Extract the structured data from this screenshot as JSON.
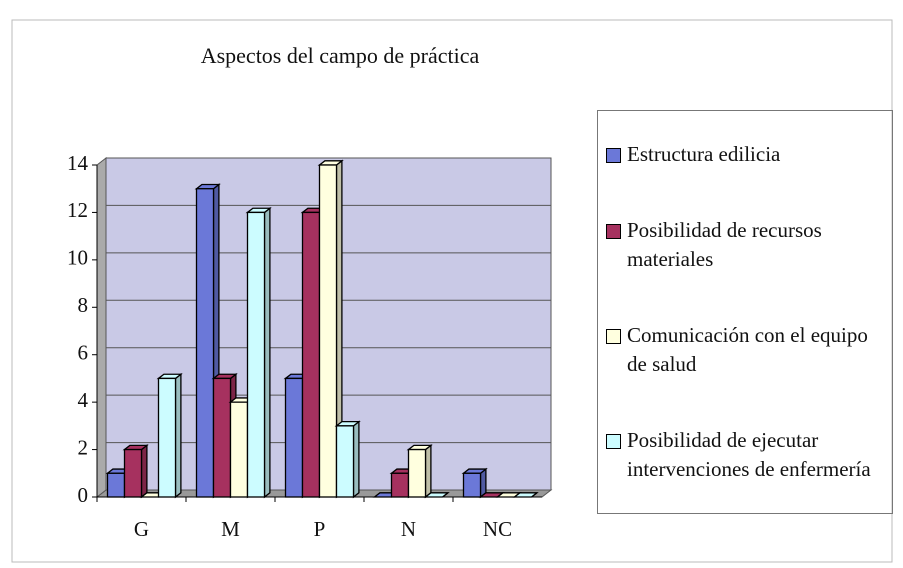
{
  "chart_data": {
    "type": "bar3d",
    "title": "Aspectos del campo de práctica",
    "categories": [
      "G",
      "M",
      "P",
      "N",
      "NC"
    ],
    "series": [
      {
        "name": "Estructura edilicia",
        "color": "#6b78d8",
        "values": [
          1,
          13,
          5,
          0,
          1
        ]
      },
      {
        "name": "Posibilidad de recursos materiales",
        "color": "#a6315f",
        "values": [
          2,
          5,
          12,
          1,
          0
        ]
      },
      {
        "name": "Comunicación con el equipo de salud",
        "color": "#ffffdf",
        "values": [
          0,
          4,
          14,
          2,
          0
        ]
      },
      {
        "name": "Posibilidad de ejecutar intervenciones de enfermería",
        "color": "#ccfcff",
        "values": [
          5,
          12,
          3,
          0,
          0
        ]
      }
    ],
    "ylim": [
      0,
      14
    ],
    "yticks": [
      0,
      2,
      4,
      6,
      8,
      10,
      12,
      14
    ],
    "grid": true,
    "legend": "right"
  }
}
